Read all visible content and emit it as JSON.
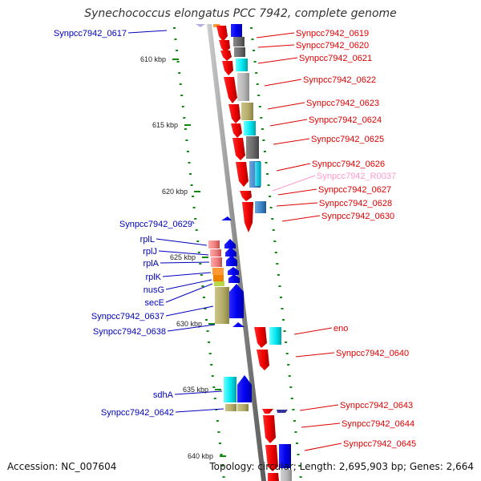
{
  "title": "Synechococcus elongatus PCC 7942, complete genome",
  "accession": "Accession: NC_007604",
  "topology": "Topology: circular; Length: 2,695,903 bp; Genes: 2,664",
  "colors": {
    "red_label": "#dd0000",
    "blue_label": "#0000bb",
    "pink_label": "#ff99cc",
    "spine": "#888888",
    "tick_green": "#118811"
  },
  "kbp_labels": [
    "610 kbp",
    "615 kbp",
    "620 kbp",
    "625 kbp",
    "630 kbp",
    "635 kbp",
    "640 kbp"
  ],
  "right_labels": [
    "Synpcc7942_0619",
    "Synpcc7942_0620",
    "Synpcc7942_0621",
    "Synpcc7942_0622",
    "Synpcc7942_0623",
    "Synpcc7942_0624",
    "Synpcc7942_0625",
    "Synpcc7942_0626",
    "Synpcc7942_R0037",
    "Synpcc7942_0627",
    "Synpcc7942_0628",
    "Synpcc7942_0630",
    "eno",
    "Synpcc7942_0640",
    "Synpcc7942_0643",
    "Synpcc7942_0644",
    "Synpcc7942_0645"
  ],
  "left_labels": [
    "Synpcc7942_0617",
    "Synpcc7942_0629",
    "rplL",
    "rplJ",
    "rplA",
    "rplK",
    "nusG",
    "secE",
    "Synpcc7942_0637",
    "Synpcc7942_0638",
    "sdhA",
    "Synpcc7942_0642"
  ]
}
